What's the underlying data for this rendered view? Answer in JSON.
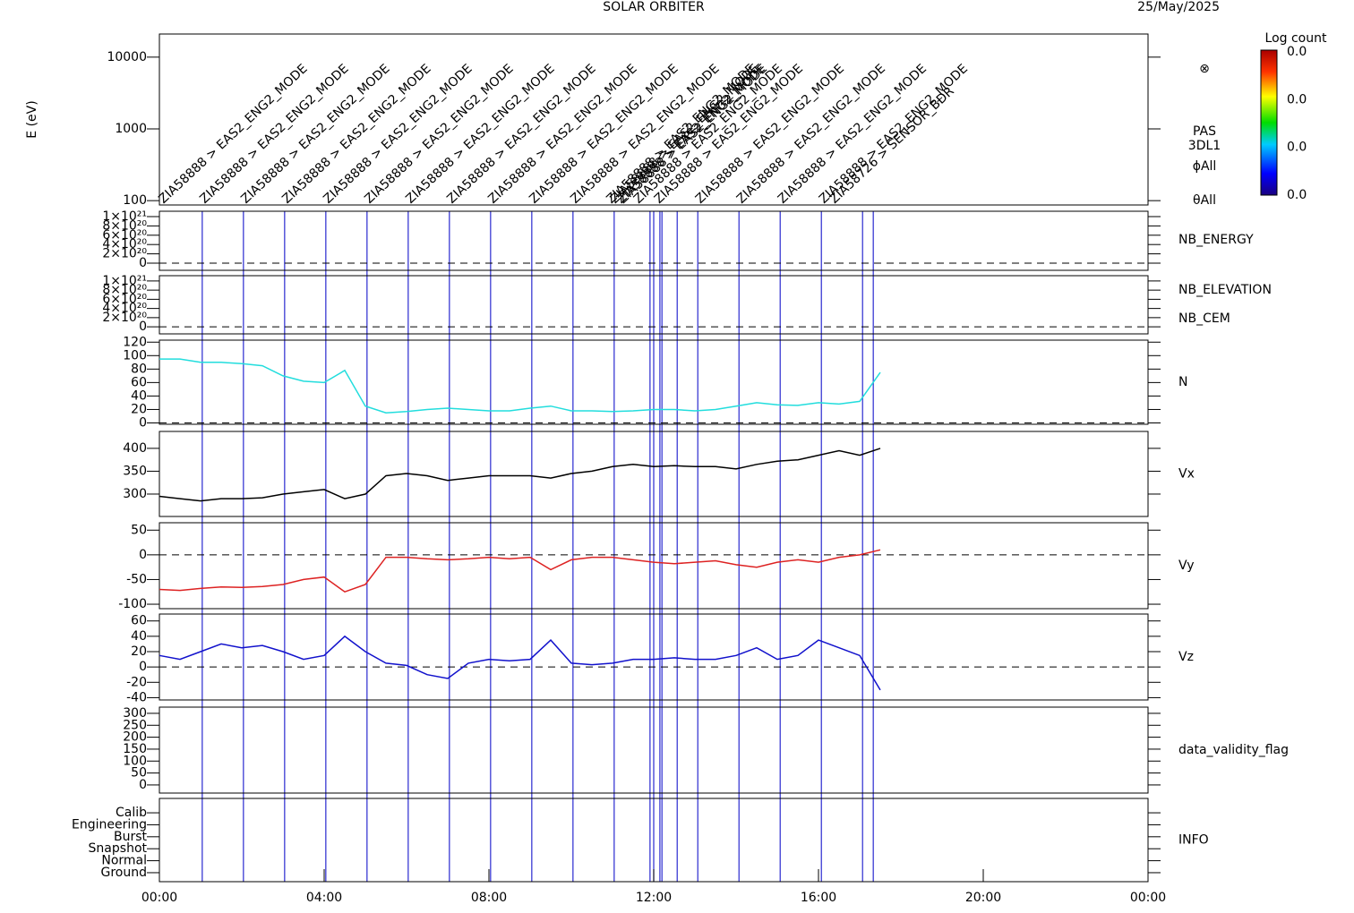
{
  "chart_data": [
    {
      "type": "spectrogram",
      "title": "SOLAR ORBITER",
      "subtitle": "25/May/2025",
      "ylabel": "E (eV)",
      "log": true,
      "ylim": [
        87,
        21000
      ],
      "yticks": [
        100,
        1000,
        10000
      ],
      "symbol": "⊗",
      "labels": [
        {
          "text": "PAS",
          "color": "#000000"
        },
        {
          "text": "3DL1",
          "color": "#000000"
        },
        {
          "text": "ϕAll",
          "color": "#000000"
        },
        {
          "text": "θAll",
          "color": "#000000"
        }
      ],
      "colorbar": {
        "label": "Log count",
        "ticks": [
          "0.0",
          "0.0",
          "0.0",
          "0.0"
        ]
      },
      "annotation_color": "#2a2ad0",
      "annotations": [
        {
          "x": 1.04,
          "text": "ZIA58888 > EAS2_ENG2_MODE"
        },
        {
          "x": 2.04,
          "text": "ZIA58888 > EAS2_ENG2_MODE"
        },
        {
          "x": 3.04,
          "text": "ZIA58888 > EAS2_ENG2_MODE"
        },
        {
          "x": 4.04,
          "text": "ZIA58888 > EAS2_ENG2_MODE"
        },
        {
          "x": 5.04,
          "text": "ZIA58888 > EAS2_ENG2_MODE"
        },
        {
          "x": 6.04,
          "text": "ZIA58888 > EAS2_ENG2_MODE"
        },
        {
          "x": 7.04,
          "text": "ZIA58888 > EAS2_ENG2_MODE"
        },
        {
          "x": 8.04,
          "text": "ZIA58888 > EAS2_ENG2_MODE"
        },
        {
          "x": 9.04,
          "text": "ZIA58888 > EAS2_ENG2_MODE"
        },
        {
          "x": 10.04,
          "text": "ZIA58888 > EAS2_ENG2_MODE"
        },
        {
          "x": 11.04,
          "text": "ZIA58888 > EAS2_ENG2_MODE"
        },
        {
          "x": 11.91,
          "text": "ZIA58888 > EAS2_ENG2_MODE"
        },
        {
          "x": 12.0,
          "text": "ZIA58888 > EAS2_ENG2_MODE"
        },
        {
          "x": 12.15,
          "text": "ZIA58888 > EAS2_ENG2_MODE"
        },
        {
          "x": 12.2,
          "text": "ZIA58888 > EAS2_ENG2_MODE"
        },
        {
          "x": 12.57,
          "text": "ZIA58888 > EAS2_ENG2_MODE"
        },
        {
          "x": 13.07,
          "text": "ZIA58888 > EAS2_ENG2_MODE"
        },
        {
          "x": 14.07,
          "text": "ZIA58888 > EAS2_ENG2_MODE"
        },
        {
          "x": 15.07,
          "text": "ZIA58888 > EAS2_ENG2_MODE"
        },
        {
          "x": 16.07,
          "text": "ZIA58888 > EAS2_ENG2_MODE"
        },
        {
          "x": 17.07,
          "text": "ZIA58888 > EAS2_ENG2_MODE"
        },
        {
          "x": 17.33,
          "text": "ZIA58726 > SENSOR_BDR"
        }
      ]
    },
    {
      "type": "line",
      "ylim": [
        -1.54e+20,
        1.115e+21
      ],
      "zero_line": true,
      "yticks": [
        0,
        {
          "value": 2e+20,
          "label": "2×10²⁰"
        },
        {
          "value": 4e+20,
          "label": "4×10²⁰"
        },
        {
          "value": 6e+20,
          "label": "6×10²⁰"
        },
        {
          "value": 8e+20,
          "label": "8×10²⁰"
        },
        {
          "value": 1e+21,
          "label": "1×10²¹"
        }
      ],
      "labels": [
        {
          "text": "NB_ENERGY",
          "color": "#22dd22"
        }
      ],
      "series": []
    },
    {
      "type": "line",
      "ylim": [
        -1.54e+20,
        1.115e+21
      ],
      "zero_line": true,
      "yticks": [
        0,
        {
          "value": 2e+20,
          "label": "2×10²⁰"
        },
        {
          "value": 4e+20,
          "label": "4×10²⁰"
        },
        {
          "value": 6e+20,
          "label": "6×10²⁰"
        },
        {
          "value": 8e+20,
          "label": "8×10²⁰"
        },
        {
          "value": 1e+21,
          "label": "1×10²¹"
        }
      ],
      "labels": [
        {
          "text": "NB_ELEVATION",
          "color": "#22dd22"
        },
        {
          "text": "NB_CEM",
          "color": "#2222cc"
        }
      ],
      "series": []
    },
    {
      "type": "line",
      "ylim": [
        -2,
        123
      ],
      "zero_line": true,
      "yticks": [
        0,
        20,
        40,
        60,
        80,
        100,
        120
      ],
      "labels": [],
      "series": [
        {
          "name": "N",
          "color": "#22dddd",
          "x": [
            0,
            0.5,
            1,
            1.5,
            2,
            2.5,
            3,
            3.5,
            4,
            4.5,
            5,
            5.5,
            6,
            6.5,
            7,
            7.5,
            8,
            8.5,
            9,
            9.5,
            10,
            10.5,
            11,
            11.5,
            12,
            12.5,
            13,
            13.5,
            14,
            14.5,
            15,
            15.5,
            16,
            16.5,
            17,
            17.5
          ],
          "values": [
            95,
            95,
            90,
            90,
            88,
            85,
            70,
            62,
            60,
            78,
            25,
            15,
            17,
            20,
            22,
            20,
            18,
            18,
            22,
            25,
            18,
            18,
            17,
            18,
            20,
            20,
            18,
            20,
            25,
            30,
            27,
            26,
            30,
            28,
            32,
            75
          ]
        }
      ]
    },
    {
      "type": "line",
      "ylim": [
        251,
        437
      ],
      "yticks": [
        300,
        350,
        400
      ],
      "labels": [],
      "series": [
        {
          "name": "Vx",
          "color": "#000000",
          "x": [
            0,
            0.5,
            1,
            1.5,
            2,
            2.5,
            3,
            3.5,
            4,
            4.5,
            5,
            5.5,
            6,
            6.5,
            7,
            7.5,
            8,
            8.5,
            9,
            9.5,
            10,
            10.5,
            11,
            11.5,
            12,
            12.5,
            13,
            13.5,
            14,
            14.5,
            15,
            15.5,
            16,
            16.5,
            17,
            17.5
          ],
          "values": [
            295,
            290,
            285,
            290,
            290,
            292,
            300,
            305,
            310,
            290,
            300,
            340,
            345,
            340,
            330,
            335,
            340,
            340,
            340,
            335,
            345,
            350,
            360,
            365,
            360,
            362,
            360,
            360,
            355,
            365,
            372,
            375,
            385,
            395,
            385,
            400
          ]
        }
      ]
    },
    {
      "type": "line",
      "ylim": [
        -109,
        65
      ],
      "zero_line": true,
      "yticks": [
        -100,
        -50,
        0,
        50
      ],
      "labels": [],
      "series": [
        {
          "name": "Vy",
          "color": "#dd2222",
          "x": [
            0,
            0.5,
            1,
            1.5,
            2,
            2.5,
            3,
            3.5,
            4,
            4.5,
            5,
            5.5,
            6,
            6.5,
            7,
            7.5,
            8,
            8.5,
            9,
            9.5,
            10,
            10.5,
            11,
            11.5,
            12,
            12.5,
            13,
            13.5,
            14,
            14.5,
            15,
            15.5,
            16,
            16.5,
            17,
            17.5
          ],
          "values": [
            -70,
            -72,
            -68,
            -65,
            -66,
            -64,
            -60,
            -50,
            -45,
            -75,
            -60,
            -5,
            -5,
            -8,
            -10,
            -8,
            -5,
            -8,
            -5,
            -30,
            -10,
            -5,
            -5,
            -10,
            -15,
            -18,
            -15,
            -12,
            -20,
            -25,
            -15,
            -10,
            -15,
            -5,
            0,
            10
          ]
        }
      ]
    },
    {
      "type": "line",
      "ylim": [
        -43,
        69
      ],
      "zero_line": true,
      "yticks": [
        -40,
        -20,
        0,
        20,
        40,
        60
      ],
      "labels": [],
      "series": [
        {
          "name": "Vz",
          "color": "#1111cc",
          "x": [
            0,
            0.5,
            1,
            1.5,
            2,
            2.5,
            3,
            3.5,
            4,
            4.5,
            5,
            5.5,
            6,
            6.5,
            7,
            7.5,
            8,
            8.5,
            9,
            9.5,
            10,
            10.5,
            11,
            11.5,
            12,
            12.5,
            13,
            13.5,
            14,
            14.5,
            15,
            15.5,
            16,
            16.5,
            17,
            17.5
          ],
          "values": [
            15,
            10,
            20,
            30,
            25,
            28,
            20,
            10,
            15,
            40,
            20,
            5,
            2,
            -10,
            -15,
            5,
            10,
            8,
            10,
            35,
            5,
            3,
            5,
            10,
            10,
            12,
            10,
            10,
            15,
            25,
            10,
            15,
            35,
            25,
            15,
            -30
          ]
        }
      ]
    },
    {
      "type": "line",
      "ylim": [
        -34,
        326
      ],
      "yticks": [
        0,
        50,
        100,
        150,
        200,
        250,
        300
      ],
      "labels": [
        {
          "text": "data_validity_flag",
          "color": "#000000"
        }
      ],
      "series": []
    },
    {
      "type": "line",
      "ylim": [
        -0.75,
        6.2
      ],
      "yticks": [
        {
          "value": 0,
          "label": "Ground"
        },
        {
          "value": 1,
          "label": "Normal"
        },
        {
          "value": 2,
          "label": "Snapshot"
        },
        {
          "value": 3,
          "label": "Burst"
        },
        {
          "value": 4,
          "label": "Engineering"
        },
        {
          "value": 5,
          "label": "Calib"
        }
      ],
      "labels": [
        {
          "text": "INFO",
          "color": "#000000"
        }
      ],
      "series": [],
      "xlim": [
        0,
        24
      ],
      "xticks": [
        {
          "value": 0,
          "label": "00:00"
        },
        {
          "value": 4,
          "label": "04:00"
        },
        {
          "value": 8,
          "label": "08:00"
        },
        {
          "value": 12,
          "label": "12:00"
        },
        {
          "value": 16,
          "label": "16:00"
        },
        {
          "value": 20,
          "label": "20:00"
        },
        {
          "value": 24,
          "label": "00:00"
        }
      ]
    }
  ]
}
